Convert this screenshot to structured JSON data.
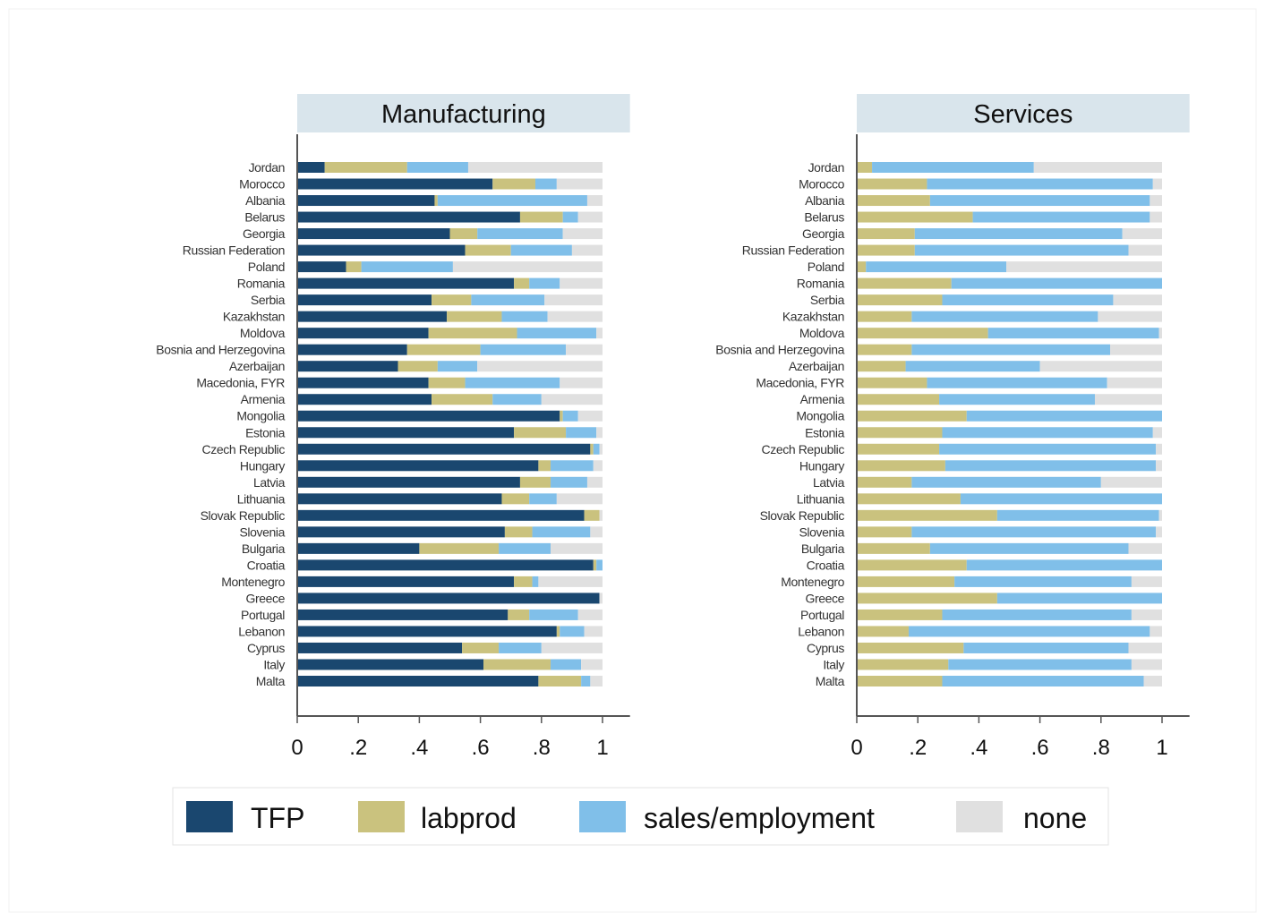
{
  "chart_data": [
    {
      "type": "bar",
      "orientation": "horizontal",
      "stacked": true,
      "title": "Manufacturing",
      "categories": [
        "Jordan",
        "Morocco",
        "Albania",
        "Belarus",
        "Georgia",
        "Russian Federation",
        "Poland",
        "Romania",
        "Serbia",
        "Kazakhstan",
        "Moldova",
        "Bosnia and Herzegovina",
        "Azerbaijan",
        "Macedonia, FYR",
        "Armenia",
        "Mongolia",
        "Estonia",
        "Czech Republic",
        "Hungary",
        "Latvia",
        "Lithuania",
        "Slovak Republic",
        "Slovenia",
        "Bulgaria",
        "Croatia",
        "Montenegro",
        "Greece",
        "Portugal",
        "Lebanon",
        "Cyprus",
        "Italy",
        "Malta"
      ],
      "series": [
        {
          "color": "#1a476f",
          "values": [
            0.09,
            0.64,
            0.45,
            0.73,
            0.5,
            0.55,
            0.16,
            0.71,
            0.44,
            0.49,
            0.43,
            0.36,
            0.33,
            0.43,
            0.44,
            0.86,
            0.71,
            0.96,
            0.79,
            0.73,
            0.67,
            0.94,
            0.68,
            0.4,
            0.97,
            0.71,
            0.99,
            0.69,
            0.85,
            0.54,
            0.61,
            0.79
          ]
        },
        {
          "color": "#cac27e",
          "values": [
            0.27,
            0.14,
            0.01,
            0.14,
            0.09,
            0.15,
            0.05,
            0.05,
            0.13,
            0.18,
            0.29,
            0.24,
            0.13,
            0.12,
            0.2,
            0.01,
            0.17,
            0.01,
            0.04,
            0.1,
            0.09,
            0.05,
            0.09,
            0.26,
            0.01,
            0.06,
            0.0,
            0.07,
            0.01,
            0.12,
            0.22,
            0.14
          ]
        },
        {
          "color": "#80bfe9",
          "values": [
            0.2,
            0.07,
            0.49,
            0.05,
            0.28,
            0.2,
            0.3,
            0.1,
            0.24,
            0.15,
            0.26,
            0.28,
            0.13,
            0.31,
            0.16,
            0.05,
            0.1,
            0.02,
            0.14,
            0.12,
            0.09,
            0.0,
            0.19,
            0.17,
            0.02,
            0.02,
            0.0,
            0.16,
            0.08,
            0.14,
            0.1,
            0.03
          ]
        },
        {
          "color": "#e0e0e0",
          "values": [
            0.44,
            0.15,
            0.05,
            0.08,
            0.13,
            0.1,
            0.49,
            0.14,
            0.19,
            0.18,
            0.02,
            0.12,
            0.41,
            0.14,
            0.2,
            0.08,
            0.02,
            0.01,
            0.03,
            0.05,
            0.15,
            0.01,
            0.04,
            0.17,
            0.0,
            0.21,
            0.01,
            0.08,
            0.06,
            0.2,
            0.07,
            0.04
          ]
        }
      ],
      "xlim": [
        0,
        1.09
      ],
      "xticks": [
        0,
        {
          "value": 0.2,
          "label": ".2"
        },
        {
          "value": 0.4,
          "label": ".4"
        },
        {
          "value": 0.6,
          "label": ".6"
        },
        {
          "value": 0.8,
          "label": ".8"
        },
        1
      ]
    },
    {
      "type": "bar",
      "orientation": "horizontal",
      "stacked": true,
      "title": "Services",
      "categories": [
        "Jordan",
        "Morocco",
        "Albania",
        "Belarus",
        "Georgia",
        "Russian Federation",
        "Poland",
        "Romania",
        "Serbia",
        "Kazakhstan",
        "Moldova",
        "Bosnia and Herzegovina",
        "Azerbaijan",
        "Macedonia, FYR",
        "Armenia",
        "Mongolia",
        "Estonia",
        "Czech Republic",
        "Hungary",
        "Latvia",
        "Lithuania",
        "Slovak Republic",
        "Slovenia",
        "Bulgaria",
        "Croatia",
        "Montenegro",
        "Greece",
        "Portugal",
        "Lebanon",
        "Cyprus",
        "Italy",
        "Malta"
      ],
      "series": [
        {
          "color": "#1a476f",
          "values": [
            0,
            0,
            0,
            0,
            0,
            0,
            0,
            0,
            0,
            0,
            0,
            0,
            0,
            0,
            0,
            0,
            0,
            0,
            0,
            0,
            0,
            0,
            0,
            0,
            0,
            0,
            0,
            0,
            0,
            0,
            0,
            0
          ]
        },
        {
          "color": "#cac27e",
          "values": [
            0.05,
            0.23,
            0.24,
            0.38,
            0.19,
            0.19,
            0.03,
            0.31,
            0.28,
            0.18,
            0.43,
            0.18,
            0.16,
            0.23,
            0.27,
            0.36,
            0.28,
            0.27,
            0.29,
            0.18,
            0.34,
            0.46,
            0.18,
            0.24,
            0.36,
            0.32,
            0.46,
            0.28,
            0.17,
            0.35,
            0.3,
            0.28
          ]
        },
        {
          "color": "#80bfe9",
          "values": [
            0.53,
            0.74,
            0.72,
            0.58,
            0.68,
            0.7,
            0.46,
            0.69,
            0.56,
            0.61,
            0.56,
            0.65,
            0.44,
            0.59,
            0.51,
            0.64,
            0.69,
            0.71,
            0.69,
            0.62,
            0.66,
            0.53,
            0.8,
            0.65,
            0.64,
            0.58,
            0.54,
            0.62,
            0.79,
            0.54,
            0.6,
            0.66
          ]
        },
        {
          "color": "#e0e0e0",
          "values": [
            0.42,
            0.03,
            0.04,
            0.04,
            0.13,
            0.11,
            0.51,
            0.0,
            0.16,
            0.21,
            0.01,
            0.17,
            0.4,
            0.18,
            0.22,
            0.0,
            0.03,
            0.02,
            0.02,
            0.2,
            0.0,
            0.01,
            0.02,
            0.11,
            0.0,
            0.1,
            0.0,
            0.1,
            0.04,
            0.11,
            0.1,
            0.06
          ]
        }
      ],
      "xlim": [
        0,
        1.09
      ],
      "xticks": [
        0,
        {
          "value": 0.2,
          "label": ".2"
        },
        {
          "value": 0.4,
          "label": ".4"
        },
        {
          "value": 0.6,
          "label": ".6"
        },
        {
          "value": 0.8,
          "label": ".8"
        },
        1
      ]
    }
  ],
  "legend": {
    "position": "bottom",
    "items": [
      {
        "name": "TFP",
        "color": "#1a476f"
      },
      {
        "name": "labprod",
        "color": "#cac27e"
      },
      {
        "name": "sales/employment",
        "color": "#80bfe9"
      },
      {
        "name": "none",
        "color": "#e0e0e0"
      }
    ]
  }
}
